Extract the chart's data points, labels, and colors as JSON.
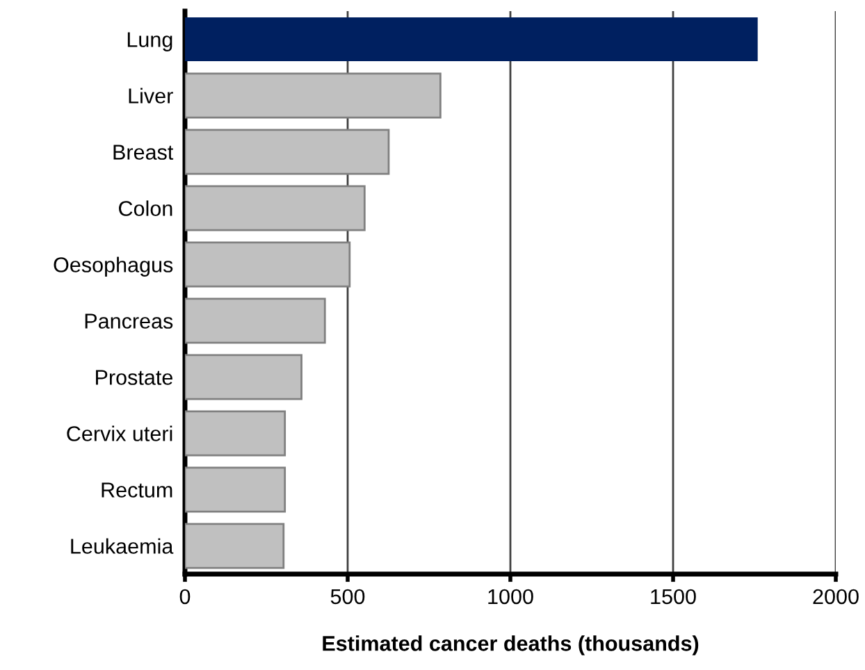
{
  "chart_data": {
    "type": "bar",
    "orientation": "horizontal",
    "xlabel": "Estimated cancer deaths (thousands)",
    "categories": [
      "Lung",
      "Liver",
      "Breast",
      "Colon",
      "Oesophagus",
      "Pancreas",
      "Prostate",
      "Cervix uteri",
      "Rectum",
      "Leukaemia"
    ],
    "values": [
      1760,
      785,
      626,
      552,
      506,
      430,
      358,
      307,
      307,
      303
    ],
    "colors": [
      "#002060",
      "#c0c0c0",
      "#c0c0c0",
      "#c0c0c0",
      "#c0c0c0",
      "#c0c0c0",
      "#c0c0c0",
      "#c0c0c0",
      "#c0c0c0",
      "#c0c0c0"
    ],
    "xlim": [
      0,
      2000
    ],
    "xticks": [
      0,
      500,
      1000,
      1500,
      2000
    ],
    "grid": "x"
  }
}
